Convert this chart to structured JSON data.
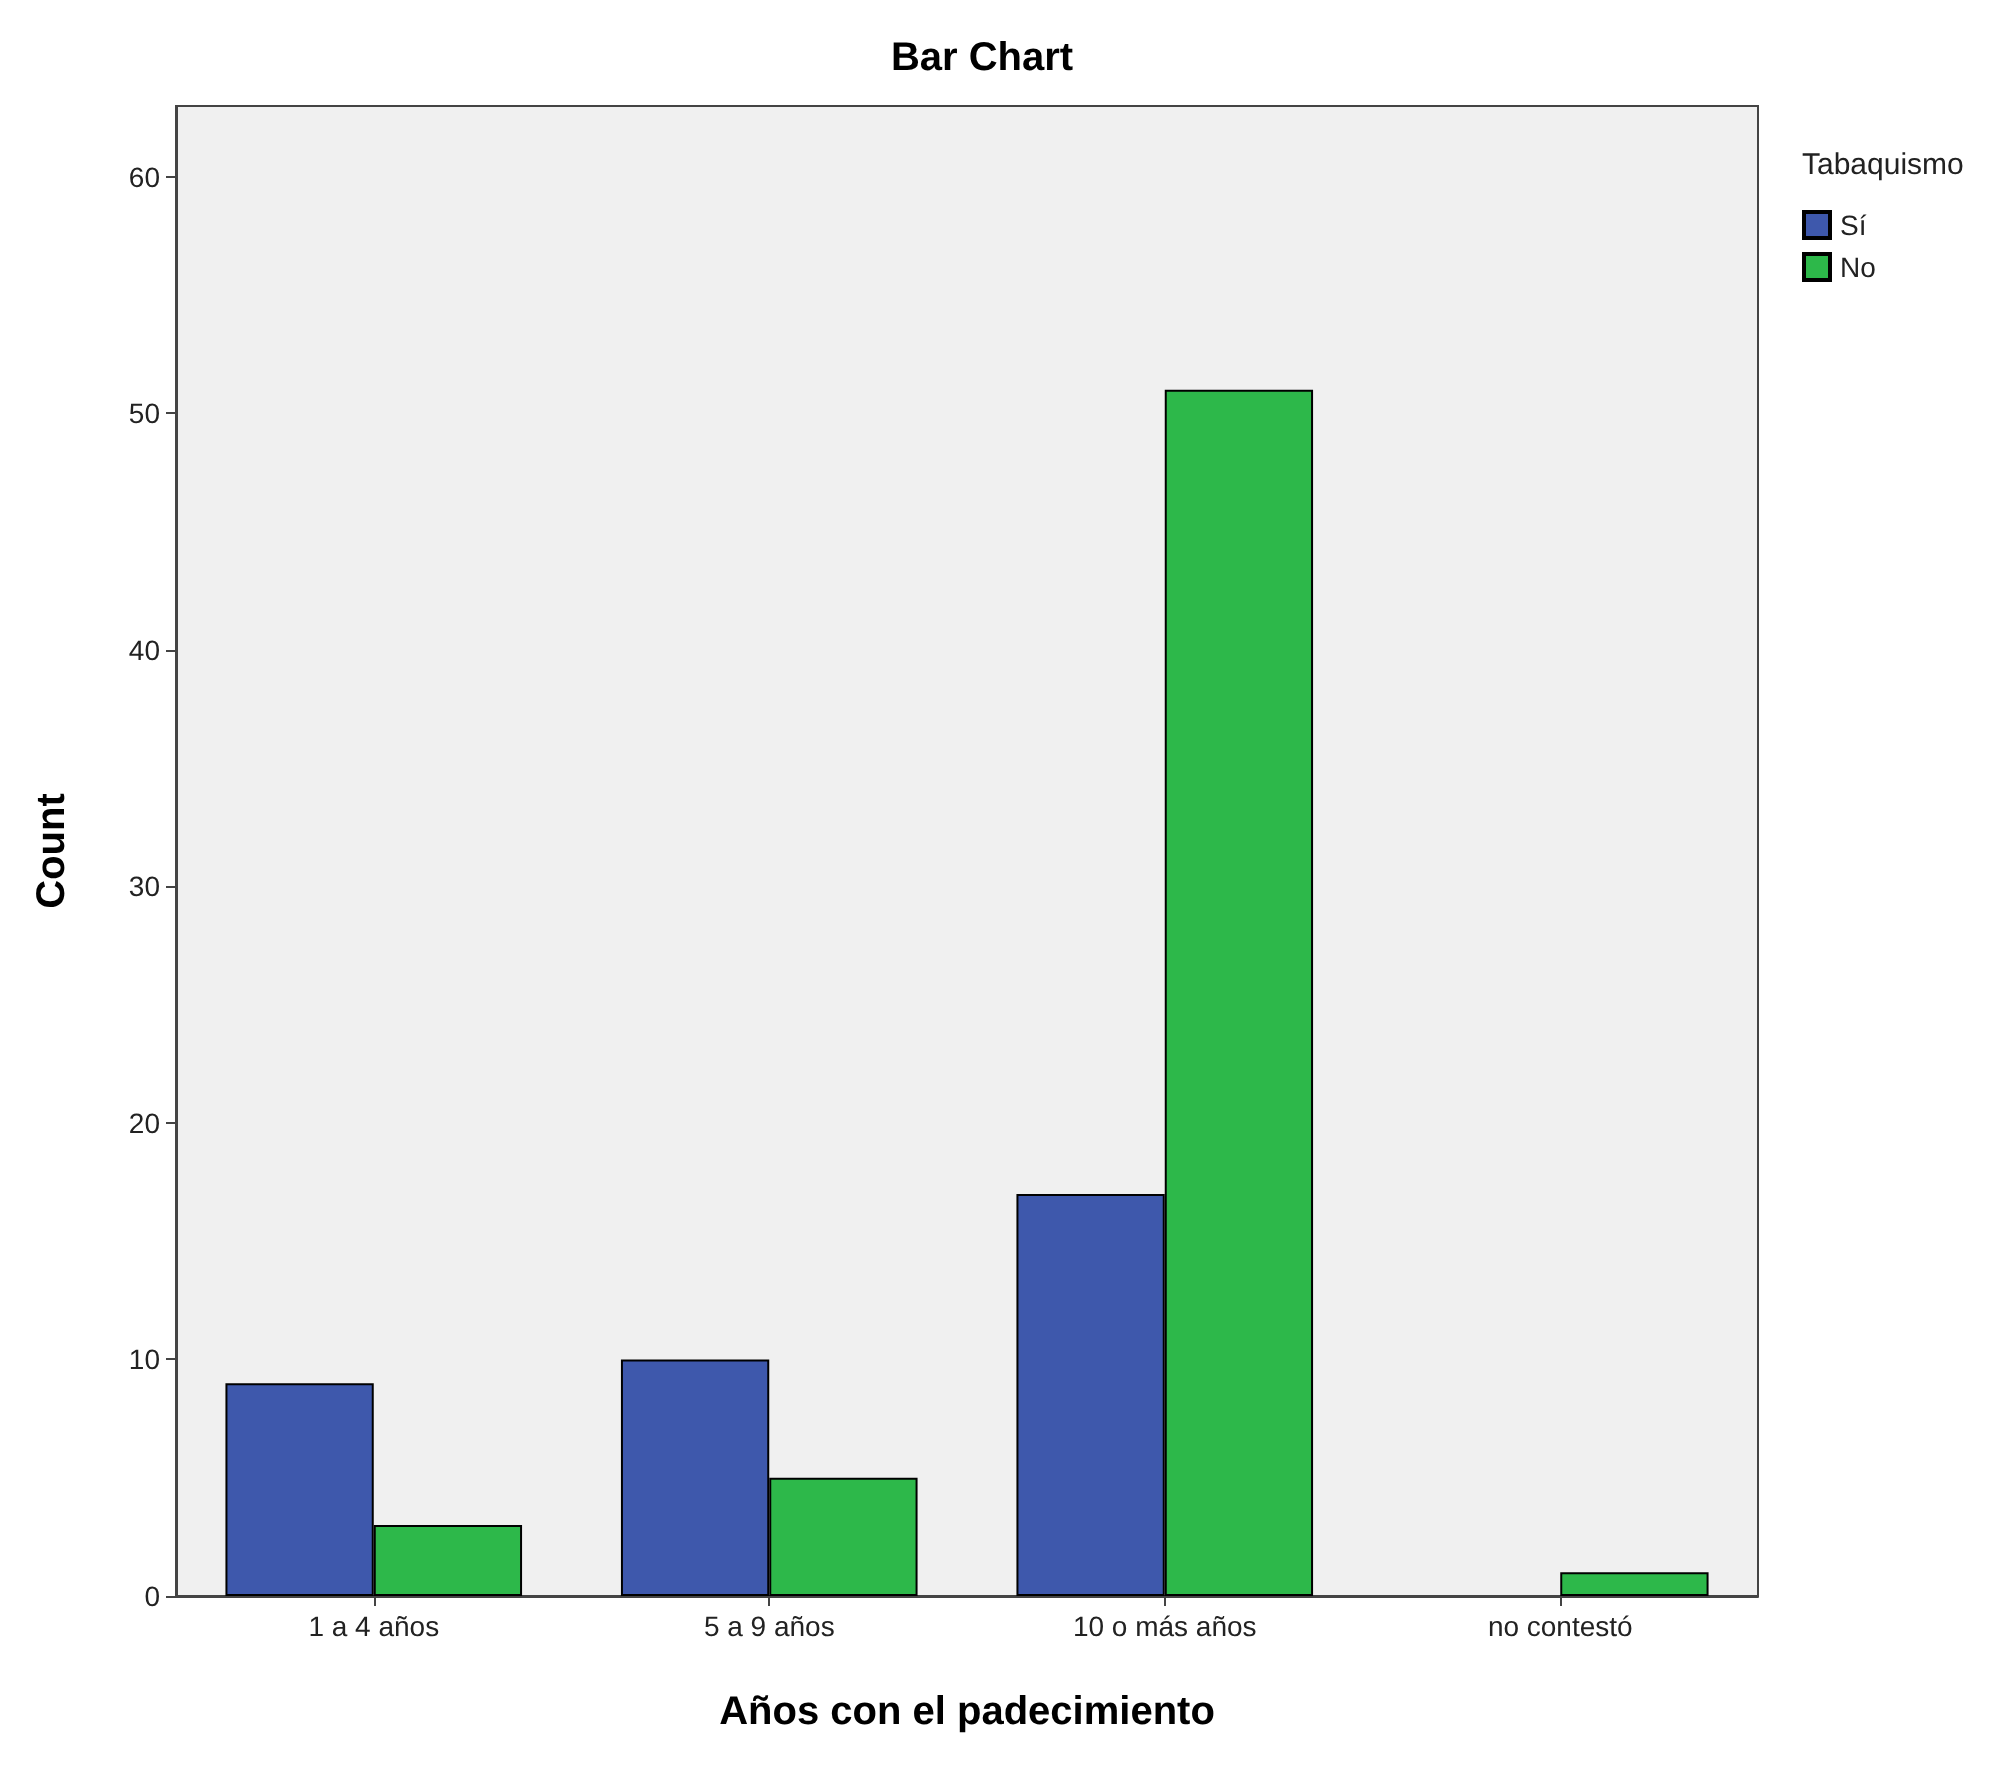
{
  "chart_data": {
    "type": "bar",
    "title": "Bar Chart",
    "xlabel": "Años con el padecimiento",
    "ylabel": "Count",
    "legend_title": "Tabaquismo",
    "categories": [
      "1 a 4 años",
      "5 a 9 años",
      "10 o más años",
      "no contestó"
    ],
    "series": [
      {
        "name": "Sí",
        "color": "#3e58ac",
        "values": [
          9,
          10,
          17,
          null
        ]
      },
      {
        "name": "No",
        "color": "#2db84a",
        "values": [
          3,
          5,
          51,
          1
        ]
      }
    ],
    "ylim": [
      0,
      63
    ],
    "yticks": [
      0,
      10,
      20,
      30,
      40,
      50,
      60
    ],
    "grid": false,
    "legend": "top right"
  }
}
